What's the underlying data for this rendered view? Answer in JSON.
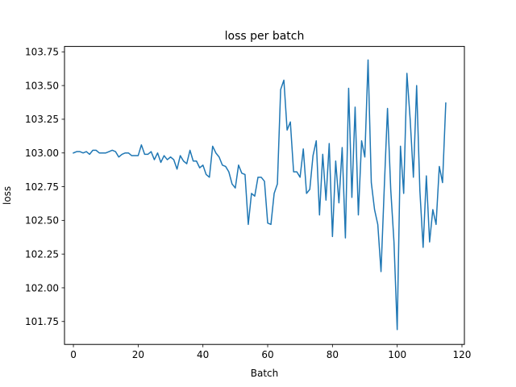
{
  "chart_data": {
    "type": "line",
    "title": "loss per batch",
    "xlabel": "Batch",
    "ylabel": "loss",
    "xlim": [
      -2.75,
      120.75
    ],
    "ylim": [
      101.58,
      103.79
    ],
    "xticks": [
      0,
      20,
      40,
      60,
      80,
      100,
      120
    ],
    "xtick_labels": [
      "0",
      "20",
      "40",
      "60",
      "80",
      "100",
      "120"
    ],
    "yticks": [
      101.75,
      102.0,
      102.25,
      102.5,
      102.75,
      103.0,
      103.25,
      103.5,
      103.75
    ],
    "ytick_labels": [
      "101.75",
      "102.00",
      "102.25",
      "102.50",
      "102.75",
      "103.00",
      "103.25",
      "103.50",
      "103.75"
    ],
    "grid": false,
    "series": [
      {
        "color": "#1f77b4",
        "x": [
          0,
          1,
          2,
          3,
          4,
          5,
          6,
          7,
          8,
          9,
          10,
          11,
          12,
          13,
          14,
          15,
          16,
          17,
          18,
          19,
          20,
          21,
          22,
          23,
          24,
          25,
          26,
          27,
          28,
          29,
          30,
          31,
          32,
          33,
          34,
          35,
          36,
          37,
          38,
          39,
          40,
          41,
          42,
          43,
          44,
          45,
          46,
          47,
          48,
          49,
          50,
          51,
          52,
          53,
          54,
          55,
          56,
          57,
          58,
          59,
          60,
          61,
          62,
          63,
          64,
          65,
          66,
          67,
          68,
          69,
          70,
          71,
          72,
          73,
          74,
          75,
          76,
          77,
          78,
          79,
          80,
          81,
          82,
          83,
          84,
          85,
          86,
          87,
          88,
          89,
          90,
          91,
          92,
          93,
          94,
          95,
          96,
          97,
          98,
          99,
          100,
          101,
          102,
          103,
          104,
          105,
          106,
          107,
          108,
          109,
          110,
          111,
          112,
          113,
          114,
          115
        ],
        "values": [
          103.0,
          103.01,
          103.01,
          103.0,
          103.01,
          102.99,
          103.02,
          103.02,
          103.0,
          103.0,
          103.0,
          103.01,
          103.02,
          103.01,
          102.97,
          102.99,
          103.0,
          103.0,
          102.98,
          102.98,
          102.98,
          103.06,
          102.99,
          102.99,
          103.01,
          102.95,
          103.0,
          102.93,
          102.98,
          102.95,
          102.97,
          102.95,
          102.88,
          102.98,
          102.94,
          102.92,
          103.02,
          102.94,
          102.94,
          102.89,
          102.91,
          102.84,
          102.82,
          103.05,
          103.0,
          102.97,
          102.91,
          102.9,
          102.86,
          102.77,
          102.74,
          102.91,
          102.85,
          102.84,
          102.47,
          102.7,
          102.68,
          102.82,
          102.82,
          102.79,
          102.48,
          102.47,
          102.7,
          102.77,
          103.47,
          103.54,
          103.17,
          103.23,
          102.86,
          102.86,
          102.82,
          103.03,
          102.7,
          102.73,
          102.98,
          103.09,
          102.54,
          102.99,
          102.65,
          103.07,
          102.38,
          102.94,
          102.63,
          103.04,
          102.37,
          103.48,
          102.67,
          103.34,
          102.54,
          103.09,
          102.97,
          103.69,
          102.78,
          102.58,
          102.47,
          102.12,
          102.74,
          103.33,
          102.73,
          102.34,
          101.69,
          103.05,
          102.7,
          103.59,
          103.25,
          102.82,
          103.5,
          102.72,
          102.3,
          102.83,
          102.34,
          102.58,
          102.47,
          102.9,
          102.78,
          103.37
        ]
      }
    ]
  }
}
